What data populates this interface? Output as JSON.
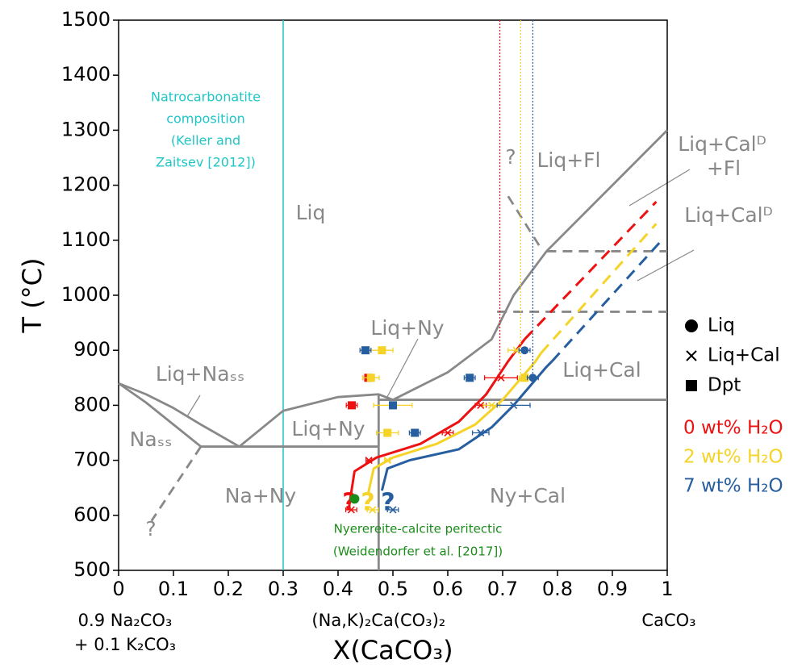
{
  "chart_data": {
    "type": "scatter",
    "xlabel": "X(CaCO₃)",
    "ylabel": "T (°C)",
    "xlim": [
      0,
      1
    ],
    "xticks": [
      0,
      0.1,
      0.2,
      0.3,
      0.4,
      0.5,
      0.6,
      0.7,
      0.8,
      0.9,
      1
    ],
    "ylim": [
      500,
      1500
    ],
    "yticks": [
      500,
      600,
      700,
      800,
      900,
      1000,
      1100,
      1200,
      1300,
      1400,
      1500
    ],
    "composition_labels": [
      "0.9 Na₂CO₃",
      "+ 0.1 K₂CO₃",
      "(Na,K)₂Ca(CO₃)₂",
      "CaCO₃"
    ],
    "phase_labels": [
      "Liq",
      "Liq+Fl",
      "Liq+Calᴰ",
      "+Fl",
      "Liq+Calᴰ",
      "Liq+Ny",
      "Liq+Ny",
      "Liq+Naₛₛ",
      "Naₛₛ",
      "Na+Ny",
      "Ny+Cal",
      "Liq+Cal",
      "?",
      "?"
    ],
    "natrocarbonatite": {
      "x": 0.3,
      "color": "#1fc6c6",
      "label": [
        "Natrocarbonatite",
        "composition",
        "(Keller and",
        "Zaitsev [2012])"
      ]
    },
    "peritectic": {
      "x": 0.43,
      "y": 630,
      "color": "#1a8c1a",
      "label": [
        "Nyerereite-calcite peritectic",
        "(Weidendorfer et al. [2017])"
      ]
    },
    "boundary_color": "#888888",
    "boundaries": [
      {
        "x": [
          0,
          0.05,
          0.1,
          0.15,
          0.22
        ],
        "y": [
          840,
          820,
          795,
          765,
          725
        ],
        "style": "solid"
      },
      {
        "x": [
          0,
          0.05,
          0.1,
          0.15
        ],
        "y": [
          840,
          805,
          765,
          725
        ],
        "style": "solid"
      },
      {
        "x": [
          0.15,
          0.474
        ],
        "y": [
          725,
          725
        ],
        "style": "solid"
      },
      {
        "x": [
          0.22,
          0.3,
          0.4,
          0.474,
          0.5
        ],
        "y": [
          725,
          790,
          815,
          820,
          810
        ],
        "style": "solid"
      },
      {
        "x": [
          0.474,
          0.474
        ],
        "y": [
          500,
          820
        ],
        "style": "solid"
      },
      {
        "x": [
          0.474,
          1
        ],
        "y": [
          810,
          810
        ],
        "style": "solid"
      },
      {
        "x": [
          0.5,
          0.6,
          0.68,
          0.72,
          0.78,
          1
        ],
        "y": [
          810,
          860,
          920,
          1000,
          1080,
          1300
        ],
        "style": "solid"
      },
      {
        "x": [
          0.15,
          0.06
        ],
        "y": [
          725,
          590
        ],
        "style": "dashed"
      },
      {
        "x": [
          0.71,
          0.77
        ],
        "y": [
          1180,
          1085
        ],
        "style": "dashed"
      },
      {
        "x": [
          0.78,
          1
        ],
        "y": [
          1080,
          1080
        ],
        "style": "dashed"
      },
      {
        "x": [
          0.69,
          1
        ],
        "y": [
          970,
          970
        ],
        "style": "dashed"
      }
    ],
    "marker_legend": [
      "Liq",
      "Liq+Cal",
      "Dpt"
    ],
    "series": [
      {
        "name": "0 wt% H₂O",
        "color": "#ee1111",
        "question": "?",
        "dotted_x": 0.695,
        "Dpt": {
          "x": [
            0.455,
            0.425
          ],
          "y": [
            850,
            800
          ],
          "xerr": [
            0.01,
            0.01
          ]
        },
        "Liq+Cal": {
          "x": [
            0.424,
            0.456,
            0.6,
            0.66,
            0.697
          ],
          "y": [
            610,
            700,
            750,
            800,
            850
          ],
          "xerr": [
            0.01,
            0.005,
            0.01,
            0.01,
            0.03
          ]
        },
        "curve": {
          "x": [
            0.42,
            0.43,
            0.47,
            0.55,
            0.62,
            0.67,
            0.71,
            0.74
          ],
          "y": [
            615,
            680,
            705,
            730,
            770,
            820,
            880,
            920
          ]
        },
        "curve_dashed": {
          "x": [
            0.74,
            0.98
          ],
          "y": [
            920,
            1170
          ]
        }
      },
      {
        "name": "2 wt% H₂O",
        "color": "#f5d327",
        "question": "?",
        "dotted_x": 0.733,
        "Dpt": {
          "x": [
            0.48,
            0.46,
            0.5,
            0.49,
            0.74
          ],
          "y": [
            900,
            850,
            800,
            750,
            850
          ],
          "xerr": [
            0.02,
            0.015,
            0.035,
            0.02,
            0.01
          ]
        },
        "Liq+Cal": {
          "x": [
            0.463,
            0.49,
            0.68,
            0.725
          ],
          "y": [
            610,
            700,
            800,
            900
          ],
          "xerr": [
            0.01,
            0.005,
            0.015,
            0.015
          ]
        },
        "curve": {
          "x": [
            0.455,
            0.465,
            0.5,
            0.58,
            0.65,
            0.7,
            0.76,
            0.77
          ],
          "y": [
            640,
            685,
            705,
            730,
            765,
            810,
            880,
            895
          ]
        },
        "curve_dashed": {
          "x": [
            0.77,
            0.98
          ],
          "y": [
            895,
            1130
          ]
        }
      },
      {
        "name": "7 wt% H₂O",
        "color": "#265ea0",
        "question": "?",
        "dotted_x": 0.755,
        "Dpt": {
          "x": [
            0.45,
            0.64,
            0.5,
            0.54
          ],
          "y": [
            900,
            850,
            800,
            750
          ],
          "xerr": [
            0.01,
            0.01,
            0.005,
            0.01
          ]
        },
        "Liq+Cal": {
          "x": [
            0.5,
            0.66,
            0.72
          ],
          "y": [
            610,
            750,
            800
          ],
          "xerr": [
            0.01,
            0.015,
            0.03
          ]
        },
        "Liq": {
          "x": [
            0.74,
            0.755
          ],
          "y": [
            900,
            850
          ],
          "xerr": [
            0.01,
            0.01
          ]
        },
        "curve": {
          "x": [
            0.48,
            0.49,
            0.53,
            0.62,
            0.68,
            0.72,
            0.78,
            0.79
          ],
          "y": [
            645,
            685,
            700,
            720,
            760,
            800,
            870,
            880
          ]
        },
        "curve_dashed": {
          "x": [
            0.79,
            0.99
          ],
          "y": [
            880,
            1100
          ]
        }
      }
    ]
  }
}
